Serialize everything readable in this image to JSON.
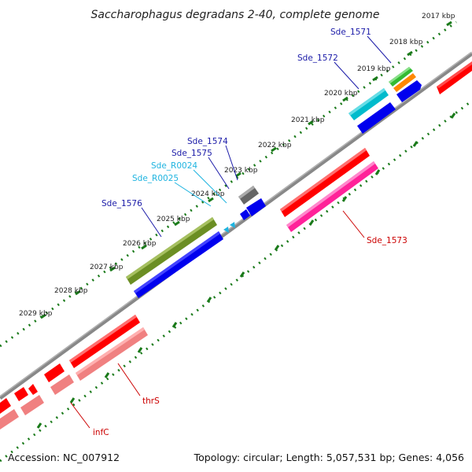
{
  "title": "Saccharophagus degradans 2-40, complete genome",
  "colors": {
    "backbone": "#888888",
    "ticks": "#1a7a1a",
    "label_protein": "#1a1aa8",
    "label_rna": "#1fb4e0",
    "label_gene": "#cc0000"
  },
  "kbp_labels": [
    "2017 kbp",
    "2018 kbp",
    "2019 kbp",
    "2020 kbp",
    "2021 kbp",
    "2022 kbp",
    "2023 kbp",
    "2024 kbp",
    "2025 kbp",
    "2026 kbp",
    "2027 kbp",
    "2028 kbp",
    "2029 kbp"
  ],
  "features": [
    {
      "name": "Sde_1571",
      "type": "CDS",
      "color": "#1a1aa8"
    },
    {
      "name": "Sde_1572",
      "type": "CDS",
      "color": "#1a1aa8"
    },
    {
      "name": "Sde_1573",
      "type": "gene",
      "color": "#cc0000"
    },
    {
      "name": "Sde_1574",
      "type": "CDS",
      "color": "#1a1aa8"
    },
    {
      "name": "Sde_1575",
      "type": "CDS",
      "color": "#1a1aa8"
    },
    {
      "name": "Sde_R0024",
      "type": "tRNA",
      "color": "#1fb4e0"
    },
    {
      "name": "Sde_R0025",
      "type": "tRNA",
      "color": "#1fb4e0"
    },
    {
      "name": "Sde_1576",
      "type": "CDS",
      "color": "#1a1aa8"
    },
    {
      "name": "thrS",
      "type": "gene",
      "color": "#cc0000"
    },
    {
      "name": "infC",
      "type": "gene",
      "color": "#cc0000"
    }
  ],
  "footer": {
    "accession": "Accession: NC_007912",
    "summary": "Topology: circular; Length: 5,057,531 bp; Genes: 4,056"
  }
}
